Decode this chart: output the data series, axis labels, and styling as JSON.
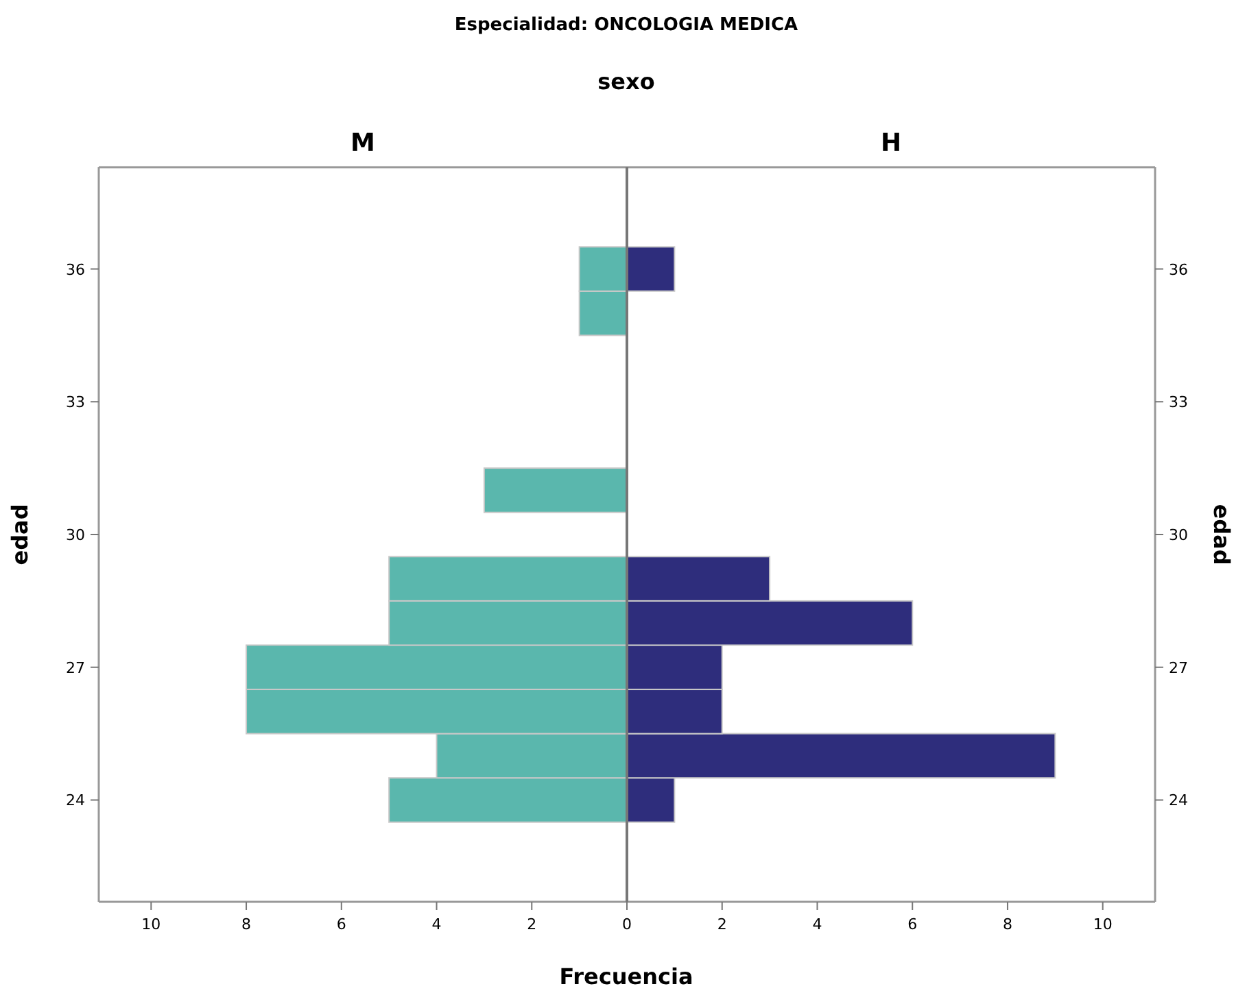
{
  "chart_data": [
    {
      "type": "bar",
      "orientation": "horizontal",
      "title": "Especialidad: ONCOLOGIA MEDICA",
      "subtitle": "sexo",
      "xlabel": "Frecuencia",
      "ylabel": "edad",
      "x": [
        24,
        25,
        26,
        27,
        28,
        29,
        31,
        35,
        36
      ],
      "series": [
        {
          "name": "M",
          "color": "#5ab7ad",
          "values": [
            5,
            4,
            8,
            8,
            5,
            5,
            3,
            1,
            1
          ]
        }
      ],
      "xlim": [
        11.1,
        0
      ],
      "xticks": [
        10,
        8,
        6,
        4,
        2,
        {
          "value": 0,
          "label": null
        }
      ],
      "ylim": [
        21.7,
        38.3
      ],
      "yticks": [
        24,
        27,
        30,
        33,
        36
      ],
      "grid": false
    },
    {
      "type": "bar",
      "orientation": "horizontal",
      "ylabel": "edad",
      "x": [
        24,
        25,
        26,
        27,
        28,
        29,
        36
      ],
      "series": [
        {
          "name": "H",
          "color": "#2e2d7c",
          "values": [
            1,
            9,
            2,
            2,
            6,
            3,
            1
          ]
        }
      ],
      "xlim": [
        0,
        11.1
      ],
      "xticks": [
        0,
        2,
        4,
        6,
        8,
        10
      ],
      "ylim": [
        21.7,
        38.3
      ],
      "yticks": [
        24,
        27,
        30,
        33,
        36
      ],
      "grid": false
    }
  ]
}
